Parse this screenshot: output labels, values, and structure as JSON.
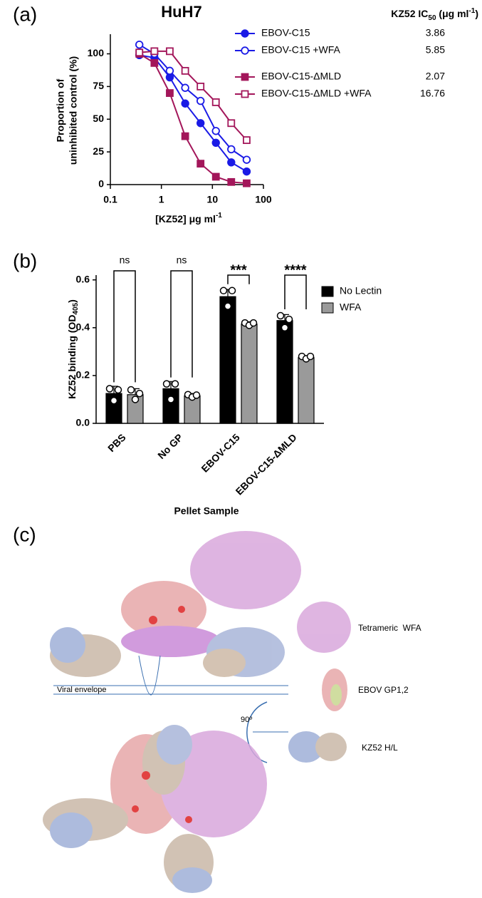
{
  "panel_labels": [
    "(a)",
    "(b)",
    "(c)"
  ],
  "chart_data": [
    {
      "type": "scatter",
      "title": "HuH7",
      "xlabel": "[KZ52] μg ml",
      "xlabel_sup": "-1",
      "ylabel": [
        "Proportion of",
        "uninhibited control (%)"
      ],
      "ic50_header": "KZ52 IC",
      "ic50_header_sub": "50",
      "ic50_header_mid": " (μg ml",
      "ic50_header_sup": "-1",
      "ic50_header_end": ")",
      "xscale": "log",
      "xlim": [
        0.1,
        100
      ],
      "xticks": [
        0.1,
        1,
        10,
        100
      ],
      "ylim": [
        0,
        115
      ],
      "yticks": [
        0,
        25,
        50,
        75,
        100
      ],
      "x": [
        0.37,
        0.73,
        1.46,
        2.93,
        5.86,
        11.7,
        23.4,
        46.9
      ],
      "series": [
        {
          "name": "EBOV-C15",
          "ic50": "3.86",
          "color": "#1a1ae6",
          "marker": "circle",
          "filled": true,
          "values": [
            99,
            97,
            82,
            62,
            47,
            32,
            17,
            10
          ]
        },
        {
          "name": "EBOV-C15 +WFA",
          "ic50": "5.85",
          "color": "#1a1ae6",
          "marker": "circle",
          "filled": false,
          "values": [
            107,
            100,
            87,
            74,
            64,
            41,
            27,
            19
          ]
        },
        {
          "name": "EBOV-C15-ΔMLD",
          "ic50": "2.07",
          "color": "#a3165a",
          "marker": "square",
          "filled": true,
          "values": [
            100,
            93,
            70,
            37,
            16,
            6,
            2,
            1
          ]
        },
        {
          "name": "EBOV-C15-ΔMLD +WFA",
          "ic50": "16.76",
          "color": "#a3165a",
          "marker": "square",
          "filled": false,
          "values": [
            101,
            102,
            102,
            87,
            75,
            63,
            47,
            34
          ]
        }
      ]
    },
    {
      "type": "bar",
      "xlabel": "Pellet Sample",
      "ylabel": "KZ52 binding (OD",
      "ylabel_sub": "405",
      "ylabel_end": ")",
      "categories": [
        "PBS",
        "No GP",
        "EBOV-C15",
        "EBOV-C15-ΔMLD"
      ],
      "ylim": [
        0,
        0.62
      ],
      "yticks": [
        {
          "value": 0,
          "label": "0.0"
        },
        0.2,
        0.4,
        0.6
      ],
      "annotations": [
        "ns",
        "ns",
        "***",
        "****"
      ],
      "legend": "right",
      "series": [
        {
          "name": "No Lectin",
          "color": "#000000",
          "values": [
            0.125,
            0.145,
            0.53,
            0.43
          ],
          "errors": [
            0.03,
            0.03,
            0.03,
            0.025
          ],
          "points": [
            [
              0.145,
              0.095,
              0.14
            ],
            [
              0.165,
              0.1,
              0.165
            ],
            [
              0.555,
              0.49,
              0.555
            ],
            [
              0.45,
              0.4,
              0.435
            ]
          ]
        },
        {
          "name": "WFA",
          "color": "#9a9a9a",
          "values": [
            0.12,
            0.115,
            0.415,
            0.275
          ],
          "errors": [
            0.025,
            0.01,
            0.01,
            0.008
          ],
          "points": [
            [
              0.14,
              0.1,
              0.125
            ],
            [
              0.12,
              0.11,
              0.118
            ],
            [
              0.42,
              0.41,
              0.42
            ],
            [
              0.28,
              0.27,
              0.28
            ]
          ]
        }
      ]
    }
  ],
  "structure": {
    "envelope_label": "Viral envelope",
    "rotation_label": "90º",
    "legend": [
      "Tetrameric  WFA",
      "EBOV GP1,2",
      "KZ52 H/L"
    ]
  }
}
